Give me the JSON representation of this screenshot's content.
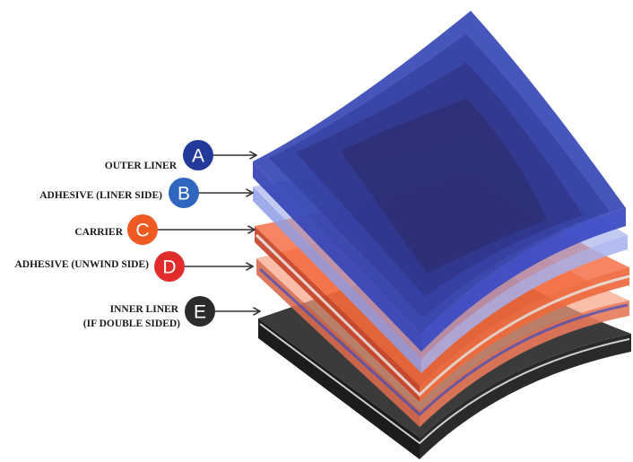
{
  "layers": [
    {
      "letter": "A",
      "label_lines": [
        "OUTER LINER"
      ],
      "badge_color": "#233a9a",
      "layer_color": "#2c3fb0"
    },
    {
      "letter": "B",
      "label_lines": [
        "ADHESIVE (LINER SIDE)"
      ],
      "badge_color": "#2f66c0",
      "layer_color": "#8f9ee6"
    },
    {
      "letter": "C",
      "label_lines": [
        "CARRIER"
      ],
      "badge_color": "#ef5a22",
      "layer_color": "#f25a2b"
    },
    {
      "letter": "D",
      "label_lines": [
        "ADHESIVE (UNWIND SIDE)"
      ],
      "badge_color": "#e22b2b",
      "layer_color": "#f7a07f"
    },
    {
      "letter": "E",
      "label_lines": [
        "INNER LINER",
        "(IF DOUBLE SIDED)"
      ],
      "badge_color": "#2b2b2b",
      "layer_color": "#333333"
    }
  ]
}
